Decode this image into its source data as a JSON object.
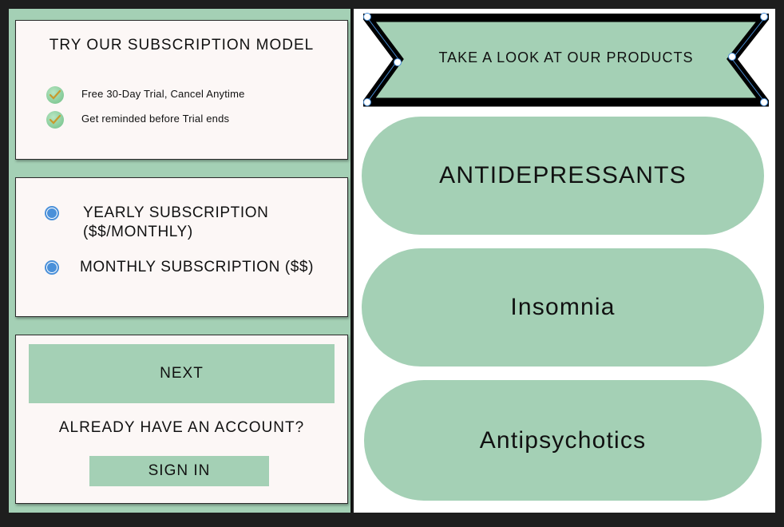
{
  "subscription_card": {
    "title": "TRY OUR SUBSCRIPTION MODEL",
    "features": [
      {
        "text": "Free 30-Day Trial, Cancel Anytime",
        "icon": "check-circle-icon"
      },
      {
        "text": "Get reminded before Trial ends",
        "icon": "check-circle-icon"
      }
    ]
  },
  "plans": [
    {
      "line1": "YEARLY SUBSCRIPTION",
      "line2": "($$/MONTHLY)",
      "selected": true
    },
    {
      "line1": "MONTHLY SUBSCRIPTION ($$)",
      "line2": "",
      "selected": true
    }
  ],
  "actions": {
    "next_label": "NEXT",
    "account_prompt": "ALREADY HAVE AN ACCOUNT?",
    "sign_in_label": "SIGN IN"
  },
  "products": {
    "banner_label": "TAKE A LOOK AT OUR PRODUCTS",
    "categories": [
      "ANTIDEPRESSANTS",
      "Insomnia",
      "Antipsychotics"
    ]
  },
  "colors": {
    "accent_green": "#a4d0b5",
    "card_bg": "#fcf7f6",
    "radio_blue": "#4a90d9",
    "selection_handle": "#4a90d9"
  }
}
